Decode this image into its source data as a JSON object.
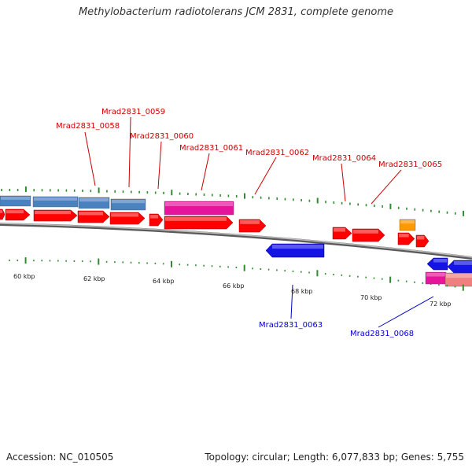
{
  "title": "Methylobacterium radiotolerans JCM 2831, complete genome",
  "footer": {
    "accession": "Accession: NC_010505",
    "topology": "Topology: circular; Length: 6,077,833 bp; Genes: 5,755"
  },
  "colors": {
    "forward_cds": "#ff0000",
    "reverse_cds": "#1414e6",
    "steel_cds": "#4a82c0",
    "magenta_cds": "#e6149b",
    "pink_cds": "#f08080",
    "orange_cds": "#ff9900",
    "backbone": "#808080",
    "tick_green": "#2e8b2e",
    "label_forward": "#cc0000",
    "label_reverse": "#0000cc"
  },
  "scale": {
    "labels": [
      "60 kbp",
      "62 kbp",
      "64 kbp",
      "66 kbp",
      "68 kbp",
      "70 kbp",
      "72 kbp"
    ]
  },
  "forward_labels": [
    "Mrad2831_0058",
    "Mrad2831_0059",
    "Mrad2831_0060",
    "Mrad2831_0061",
    "Mrad2831_0062",
    "Mrad2831_0064",
    "Mrad2831_0065"
  ],
  "reverse_labels": [
    "Mrad2831_0063",
    "Mrad2831_0068"
  ]
}
